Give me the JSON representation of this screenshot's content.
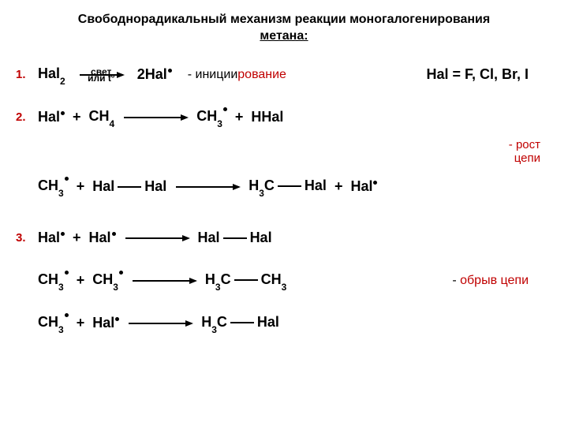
{
  "title_line1": "Свободнорадикальный механизм реакции моногалогенирования",
  "title_line2": "метана:",
  "steps": {
    "s1": "1.",
    "s2": "2.",
    "s3": "3."
  },
  "arrow_top": "свет",
  "arrow_bot": "или tº",
  "stage1": "- иниции",
  "stage1b": "рование",
  "stage2a": "- рост",
  "stage2b": "цепи",
  "stage3": "- обрыв цепи",
  "hal_def": "Hal = F, Cl, Br, I",
  "sp": {
    "Hal": "Hal",
    "Hal2": "Hal",
    "two": "2",
    "twoHal": "2Hal",
    "CH4": "CH",
    "four": "4",
    "CH3": "CH",
    "three": "3",
    "HHal": "HHal",
    "H3C": "H",
    "plus": "+",
    "C": "C"
  },
  "colors": {
    "red": "#c00000",
    "text": "#000000",
    "bg": "#ffffff"
  }
}
